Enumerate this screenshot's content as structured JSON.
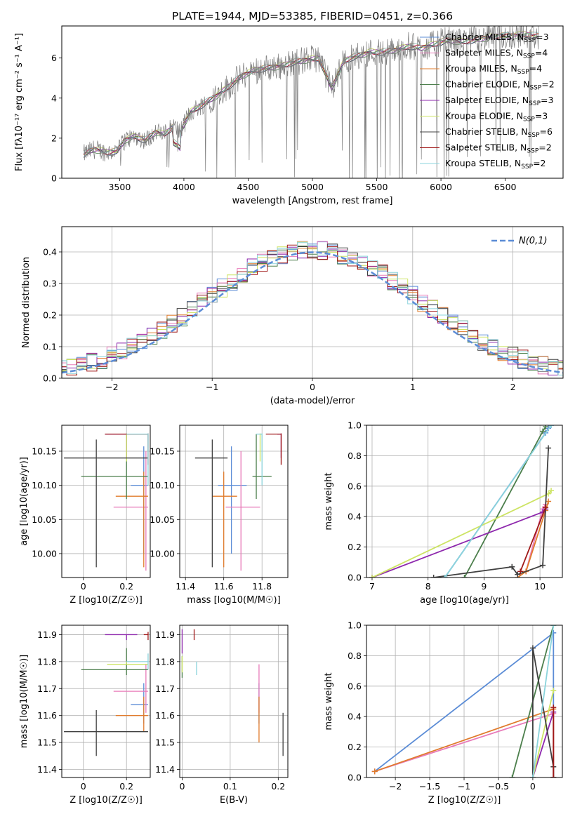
{
  "chart_data": [
    {
      "id": "spectrum",
      "type": "line",
      "title": "PLATE=1944, MJD=53385, FIBERID=0451, z=0.366",
      "xlabel": "wavelength [Angstrom, rest frame]",
      "ylabel": "Flux [fλ10⁻¹⁷ erg cm⁻² s⁻¹ A⁻¹]",
      "xlim": [
        3050,
        6950
      ],
      "ylim": [
        0,
        7.6
      ],
      "xticks": [
        3500,
        4000,
        4500,
        5000,
        5500,
        6000,
        6500
      ],
      "yticks": [
        0,
        2,
        4,
        6
      ],
      "grid": false,
      "legend_position": "top-right",
      "data_x": [
        3220,
        3300,
        3400,
        3480,
        3540,
        3620,
        3700,
        3780,
        3850,
        3920,
        3970,
        4050,
        4150,
        4250,
        4350,
        4450,
        4550,
        4650,
        4750,
        4860,
        4950,
        5050,
        5150,
        5250,
        5350,
        5450,
        5550,
        5650,
        5750,
        5850,
        5950,
        6050,
        6150,
        6250,
        6350,
        6450,
        6550,
        6650,
        6750
      ],
      "data_y": [
        1.2,
        1.45,
        1.3,
        1.35,
        1.9,
        2.1,
        1.9,
        2.3,
        2.2,
        2.6,
        2.3,
        3.3,
        3.7,
        4.1,
        4.6,
        5.1,
        5.4,
        5.5,
        5.6,
        5.8,
        5.9,
        6.0,
        4.5,
        5.9,
        6.1,
        6.3,
        6.3,
        6.4,
        6.6,
        6.5,
        6.7,
        6.9,
        6.8,
        6.9,
        7.0,
        7.1,
        7.1,
        7.2,
        7.1
      ],
      "series": [
        {
          "name": "Chabrier MILES, N_SSP=3",
          "color": "#5b8cd6"
        },
        {
          "name": "Salpeter MILES, N_SSP=4",
          "color": "#e87ab9"
        },
        {
          "name": "Kroupa MILES, N_SSP=4",
          "color": "#e07b2c"
        },
        {
          "name": "Chabrier ELODIE, N_SSP=2",
          "color": "#4c7f4c"
        },
        {
          "name": "Salpeter ELODIE, N_SSP=3",
          "color": "#8e28ad"
        },
        {
          "name": "Kroupa ELODIE, N_SSP=3",
          "color": "#cde464"
        },
        {
          "name": "Chabrier STELIB, N_SSP=6",
          "color": "#404040"
        },
        {
          "name": "Salpeter STELIB, N_SSP=2",
          "color": "#a01818"
        },
        {
          "name": "Kroupa STELIB, N_SSP=2",
          "color": "#8bd4dc"
        }
      ]
    },
    {
      "id": "residuals",
      "type": "line",
      "xlabel": "(data-model)/error",
      "ylabel": "Normed distribution",
      "xlim": [
        -2.5,
        2.5
      ],
      "ylim": [
        0,
        0.48
      ],
      "xticks": [
        -2,
        -1,
        0,
        1,
        2
      ],
      "yticks": [
        0.0,
        0.1,
        0.2,
        0.3,
        0.4
      ],
      "grid": true,
      "legend_position": "top-right",
      "reference_curve": {
        "name": "N(0,1)",
        "mean": 0,
        "sigma": 1,
        "color": "#5b8cd6"
      }
    },
    {
      "id": "age-vs-Z",
      "type": "scatter",
      "xlabel": "Z [log10(Z/Z☉)]",
      "ylabel": "age  [log10(age/yr)]",
      "xlim": [
        -0.1,
        0.31
      ],
      "ylim": [
        9.965,
        10.188
      ],
      "xticks": [
        0.0,
        0.2
      ],
      "yticks": [
        10.0,
        10.05,
        10.1,
        10.15
      ],
      "grid": true,
      "points": [
        {
          "x": 0.28,
          "xlo": 0.22,
          "xhi": 0.3,
          "y": 10.1,
          "ylo": 10.0,
          "yhi": 10.157,
          "color": "#5b8cd6"
        },
        {
          "x": 0.29,
          "xlo": 0.14,
          "xhi": 0.3,
          "y": 10.068,
          "ylo": 9.975,
          "yhi": 10.15,
          "color": "#e87ab9"
        },
        {
          "x": 0.28,
          "xlo": 0.15,
          "xhi": 0.3,
          "y": 10.084,
          "ylo": 9.98,
          "yhi": 10.12,
          "color": "#e07b2c"
        },
        {
          "x": 0.2,
          "xlo": -0.01,
          "xhi": 0.3,
          "y": 10.113,
          "ylo": 10.08,
          "yhi": 10.175,
          "color": "#4c7f4c"
        },
        {
          "x": 0.2,
          "xlo": 0.1,
          "xhi": 0.3,
          "y": 10.175,
          "ylo": 10.14,
          "yhi": 10.176,
          "color": "#8e28ad"
        },
        {
          "x": 0.2,
          "xlo": 0.2,
          "xhi": 0.3,
          "y": 10.175,
          "ylo": 10.135,
          "yhi": 10.176,
          "color": "#cde464"
        },
        {
          "x": 0.06,
          "xlo": -0.09,
          "xhi": 0.3,
          "y": 10.14,
          "ylo": 9.98,
          "yhi": 10.167,
          "color": "#404040"
        },
        {
          "x": 0.3,
          "xlo": 0.1,
          "xhi": 0.3,
          "y": 10.175,
          "ylo": 10.13,
          "yhi": 10.176,
          "color": "#a01818"
        },
        {
          "x": 0.3,
          "xlo": 0.2,
          "xhi": 0.3,
          "y": 10.175,
          "ylo": 10.1,
          "yhi": 10.176,
          "color": "#8bd4dc"
        }
      ]
    },
    {
      "id": "age-vs-mass",
      "type": "scatter",
      "xlabel": "mass [log10(M/M☉)]",
      "xlim": [
        11.37,
        11.935
      ],
      "ylim": [
        9.965,
        10.188
      ],
      "xticks": [
        11.4,
        11.6,
        11.8
      ],
      "yticks": [
        10.0,
        10.05,
        10.1,
        10.15
      ],
      "grid": true,
      "points": [
        {
          "x": 11.64,
          "xlo": 11.57,
          "xhi": 11.72,
          "y": 10.1,
          "ylo": 10.0,
          "yhi": 10.157,
          "color": "#5b8cd6"
        },
        {
          "x": 11.69,
          "xlo": 11.61,
          "xhi": 11.79,
          "y": 10.068,
          "ylo": 9.975,
          "yhi": 10.15,
          "color": "#e87ab9"
        },
        {
          "x": 11.6,
          "xlo": 11.54,
          "xhi": 11.67,
          "y": 10.084,
          "ylo": 9.98,
          "yhi": 10.12,
          "color": "#e07b2c"
        },
        {
          "x": 11.77,
          "xlo": 11.75,
          "xhi": 11.85,
          "y": 10.113,
          "ylo": 10.08,
          "yhi": 10.175,
          "color": "#4c7f4c"
        },
        {
          "x": 11.9,
          "xlo": 11.88,
          "xhi": 11.9,
          "y": 10.175,
          "ylo": 10.14,
          "yhi": 10.176,
          "color": "#8e28ad"
        },
        {
          "x": 11.79,
          "xlo": 11.79,
          "xhi": 11.8,
          "y": 10.175,
          "ylo": 10.135,
          "yhi": 10.176,
          "color": "#cde464"
        },
        {
          "x": 11.54,
          "xlo": 11.45,
          "xhi": 11.62,
          "y": 10.14,
          "ylo": 9.98,
          "yhi": 10.167,
          "color": "#404040"
        },
        {
          "x": 11.9,
          "xlo": 11.82,
          "xhi": 11.9,
          "y": 10.175,
          "ylo": 10.13,
          "yhi": 10.176,
          "color": "#a01818"
        },
        {
          "x": 11.8,
          "xlo": 11.77,
          "xhi": 11.8,
          "y": 10.175,
          "ylo": 10.1,
          "yhi": 10.176,
          "color": "#8bd4dc"
        }
      ]
    },
    {
      "id": "weight-vs-age",
      "type": "line",
      "xlabel": "age  [log10(age/yr)]",
      "ylabel": "mass weight",
      "xlim": [
        6.9,
        10.4
      ],
      "ylim": [
        0,
        1.0
      ],
      "xticks": [
        7,
        8,
        9,
        10
      ],
      "yticks": [
        0.0,
        0.2,
        0.4,
        0.6,
        0.8,
        1.0
      ],
      "grid": true,
      "series": [
        {
          "color": "#5b8cd6",
          "x": [
            8.3,
            10.1,
            10.15,
            10.2
          ],
          "y": [
            0.0,
            0.95,
            0.98,
            1.0
          ]
        },
        {
          "color": "#e87ab9",
          "x": [
            9.75,
            10.05,
            10.1
          ],
          "y": [
            0.04,
            0.45,
            0.48
          ]
        },
        {
          "color": "#e07b2c",
          "x": [
            9.6,
            9.75,
            10.1,
            10.15
          ],
          "y": [
            0.0,
            0.04,
            0.44,
            0.5
          ]
        },
        {
          "color": "#4c7f4c",
          "x": [
            8.65,
            10.05,
            10.1
          ],
          "y": [
            0.0,
            0.96,
            0.99
          ]
        },
        {
          "color": "#8e28ad",
          "x": [
            7.0,
            10.05,
            10.1
          ],
          "y": [
            0.0,
            0.43,
            0.45
          ]
        },
        {
          "color": "#cde464",
          "x": [
            7.0,
            10.15,
            10.2
          ],
          "y": [
            0.0,
            0.55,
            0.57
          ]
        },
        {
          "color": "#404040",
          "x": [
            8.1,
            9.5,
            9.6,
            10.05,
            10.15
          ],
          "y": [
            0.0,
            0.07,
            0.02,
            0.08,
            0.85
          ]
        },
        {
          "color": "#a01818",
          "x": [
            9.65,
            10.1
          ],
          "y": [
            0.04,
            0.46
          ]
        },
        {
          "color": "#8bd4dc",
          "x": [
            8.3,
            10.2
          ],
          "y": [
            0.0,
            1.0
          ]
        }
      ]
    },
    {
      "id": "mass-vs-Z",
      "type": "scatter",
      "xlabel": "Z [log10(Z/Z☉)]",
      "ylabel": "mass [log10(M/M☉)]",
      "xlim": [
        -0.1,
        0.31
      ],
      "ylim": [
        11.37,
        11.935
      ],
      "xticks": [
        0.0,
        0.2
      ],
      "yticks": [
        11.4,
        11.5,
        11.6,
        11.7,
        11.8,
        11.9
      ],
      "grid": true,
      "points": [
        {
          "x": 0.28,
          "xlo": 0.22,
          "xhi": 0.3,
          "y": 11.64,
          "ylo": 11.57,
          "yhi": 11.72,
          "color": "#5b8cd6"
        },
        {
          "x": 0.29,
          "xlo": 0.14,
          "xhi": 0.3,
          "y": 11.69,
          "ylo": 11.61,
          "yhi": 11.79,
          "color": "#e87ab9"
        },
        {
          "x": 0.28,
          "xlo": 0.15,
          "xhi": 0.3,
          "y": 11.6,
          "ylo": 11.54,
          "yhi": 11.67,
          "color": "#e07b2c"
        },
        {
          "x": 0.2,
          "xlo": -0.01,
          "xhi": 0.3,
          "y": 11.77,
          "ylo": 11.75,
          "yhi": 11.85,
          "color": "#4c7f4c"
        },
        {
          "x": 0.2,
          "xlo": 0.1,
          "xhi": 0.25,
          "y": 11.9,
          "ylo": 11.88,
          "yhi": 11.9,
          "color": "#8e28ad"
        },
        {
          "x": 0.2,
          "xlo": 0.11,
          "xhi": 0.3,
          "y": 11.79,
          "ylo": 11.79,
          "yhi": 11.8,
          "color": "#cde464"
        },
        {
          "x": 0.06,
          "xlo": -0.09,
          "xhi": 0.3,
          "y": 11.54,
          "ylo": 11.45,
          "yhi": 11.62,
          "color": "#404040"
        },
        {
          "x": 0.3,
          "xlo": 0.28,
          "xhi": 0.3,
          "y": 11.9,
          "ylo": 11.88,
          "yhi": 11.91,
          "color": "#a01818"
        },
        {
          "x": 0.3,
          "xlo": 0.2,
          "xhi": 0.3,
          "y": 11.8,
          "ylo": 11.77,
          "yhi": 11.83,
          "color": "#8bd4dc"
        }
      ]
    },
    {
      "id": "mass-vs-ebv",
      "type": "scatter",
      "xlabel": "E(B-V)",
      "xlim": [
        -0.005,
        0.22
      ],
      "ylim": [
        11.37,
        11.935
      ],
      "xticks": [
        0.0,
        0.1,
        0.2
      ],
      "yticks": [
        11.4,
        11.5,
        11.6,
        11.7,
        11.8,
        11.9
      ],
      "grid": true,
      "points": [
        {
          "x": 0.16,
          "y": 11.64,
          "ylo": 11.57,
          "yhi": 11.72,
          "color": "#5b8cd6"
        },
        {
          "x": 0.16,
          "y": 11.69,
          "ylo": 11.61,
          "yhi": 11.79,
          "color": "#e87ab9"
        },
        {
          "x": 0.16,
          "y": 11.6,
          "ylo": 11.5,
          "yhi": 11.67,
          "color": "#e07b2c"
        },
        {
          "x": 0.0,
          "y": 11.77,
          "ylo": 11.74,
          "yhi": 11.82,
          "color": "#4c7f4c"
        },
        {
          "x": 0.0,
          "y": 11.88,
          "ylo": 11.83,
          "yhi": 11.92,
          "color": "#8e28ad"
        },
        {
          "x": 0.0,
          "y": 11.79,
          "ylo": 11.76,
          "yhi": 11.82,
          "color": "#cde464"
        },
        {
          "x": 0.21,
          "y": 11.54,
          "ylo": 11.45,
          "yhi": 11.61,
          "color": "#404040"
        },
        {
          "x": 0.025,
          "y": 11.9,
          "ylo": 11.88,
          "yhi": 11.92,
          "color": "#a01818"
        },
        {
          "x": 0.03,
          "y": 11.77,
          "ylo": 11.75,
          "yhi": 11.8,
          "color": "#8bd4dc"
        }
      ]
    },
    {
      "id": "weight-vs-Z",
      "type": "line",
      "xlabel": "Z [log10(Z/Z☉)]",
      "ylabel": "mass weight",
      "xlim": [
        -2.42,
        0.43
      ],
      "ylim": [
        0,
        1.0
      ],
      "xticks": [
        -2.0,
        -1.5,
        -1.0,
        -0.5,
        0.0
      ],
      "yticks": [
        0.0,
        0.2,
        0.4,
        0.6,
        0.8,
        1.0
      ],
      "grid": true,
      "series": [
        {
          "color": "#5b8cd6",
          "x": [
            -2.3,
            0.3,
            0.3
          ],
          "y": [
            0.04,
            0.95,
            0.0
          ]
        },
        {
          "color": "#e87ab9",
          "x": [
            -2.3,
            0.3,
            0.3
          ],
          "y": [
            0.04,
            0.42,
            0.0
          ]
        },
        {
          "color": "#e07b2c",
          "x": [
            -2.3,
            0.3,
            0.3
          ],
          "y": [
            0.04,
            0.45,
            0.0
          ]
        },
        {
          "color": "#4c7f4c",
          "x": [
            -0.3,
            0.3
          ],
          "y": [
            0.0,
            1.0
          ]
        },
        {
          "color": "#8e28ad",
          "x": [
            0.0,
            0.3
          ],
          "y": [
            0.0,
            0.43
          ]
        },
        {
          "color": "#cde464",
          "x": [
            0.0,
            0.3
          ],
          "y": [
            0.0,
            0.57
          ]
        },
        {
          "color": "#404040",
          "x": [
            0.0,
            0.0,
            0.3,
            0.3
          ],
          "y": [
            0.0,
            0.85,
            0.07,
            0.0
          ]
        },
        {
          "color": "#a01818",
          "x": [
            0.3,
            0.3
          ],
          "y": [
            0.0,
            0.46
          ]
        },
        {
          "color": "#8bd4dc",
          "x": [
            0.0,
            0.3
          ],
          "y": [
            0.0,
            1.0
          ]
        }
      ]
    }
  ]
}
